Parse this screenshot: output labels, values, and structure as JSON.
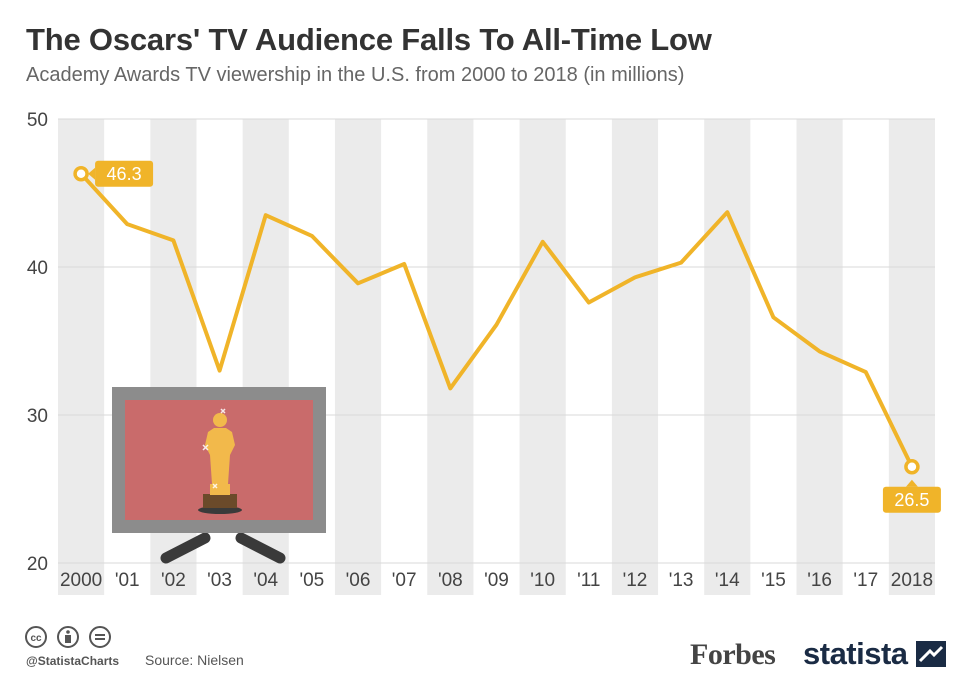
{
  "header": {
    "title": "The Oscars' TV Audience Falls To All-Time Low",
    "subtitle": "Academy Awards TV viewership in the U.S. from 2000 to 2018 (in millions)"
  },
  "footer": {
    "handle": "@StatistaCharts",
    "source": "Source: Nielsen",
    "brand_forbes": "Forbes",
    "brand_statista": "statista"
  },
  "colors": {
    "line": "#f0b429",
    "band": "#ebebeb",
    "grid": "#d9d9d9",
    "axis_text": "#444444",
    "tv_frame": "#8c8c8c",
    "tv_screen": "#c96b6b",
    "tv_stand": "#3a3a3a",
    "statuette": "#f2b94b"
  },
  "icons": [
    "creative-commons-icon",
    "attribution-icon",
    "no-derivatives-icon",
    "tv-oscar-illustration",
    "statista-logo-icon"
  ],
  "chart_data": {
    "type": "line",
    "categories": [
      "2000",
      "'01",
      "'02",
      "'03",
      "'04",
      "'05",
      "'06",
      "'07",
      "'08",
      "'09",
      "'10",
      "'11",
      "'12",
      "'13",
      "'14",
      "'15",
      "'16",
      "'17",
      "2018"
    ],
    "series": [
      {
        "values": [
          46.3,
          42.9,
          41.8,
          33.0,
          43.5,
          42.1,
          38.9,
          40.2,
          31.8,
          36.1,
          41.7,
          37.6,
          39.3,
          40.3,
          43.7,
          36.6,
          34.3,
          32.9,
          26.5
        ]
      }
    ],
    "ylim": [
      20,
      50
    ],
    "yticks": [
      20,
      30,
      40,
      50
    ],
    "data_labels": [
      {
        "index": 0,
        "text": "46.3"
      },
      {
        "index": 18,
        "text": "26.5"
      }
    ],
    "xlabel": "",
    "ylabel": "",
    "grid": true,
    "alternating_bands": true
  }
}
